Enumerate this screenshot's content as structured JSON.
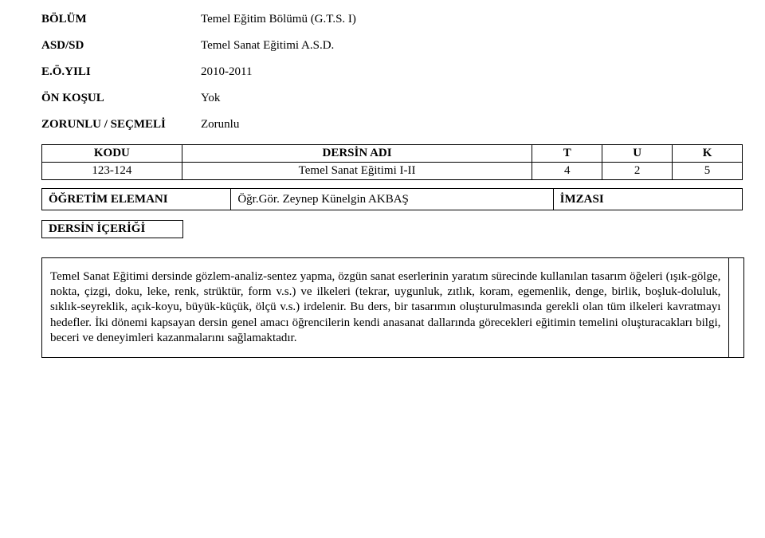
{
  "header": {
    "labels": {
      "bolum": "BÖLÜM",
      "asd": "ASD/SD",
      "eoyili": "E.Ö.YILI",
      "onkosul": "ÖN KOŞUL",
      "zorunlu": "ZORUNLU / SEÇMELİ"
    },
    "values": {
      "bolum": "Temel Eğitim Bölümü  (G.T.S. I)",
      "asd": "Temel Sanat Eğitimi A.S.D.",
      "eoyili": "2010-2011",
      "onkosul": "Yok",
      "zorunlu": "Zorunlu"
    }
  },
  "table1": {
    "head": {
      "kodu": "KODU",
      "dersin": "DERSİN ADI",
      "t": "T",
      "u": "U",
      "k": "K"
    },
    "row": {
      "kodu": "123-124",
      "dersin": "Temel Sanat Eğitimi I-II",
      "t": "4",
      "u": "2",
      "k": "5"
    }
  },
  "table2": {
    "left": "ÖĞRETİM  ELEMANI",
    "mid": "Öğr.Gör. Zeynep Künelgin AKBAŞ",
    "right": "İMZASI"
  },
  "section": {
    "label": "DERSİN İÇERİĞİ",
    "body": "Temel Sanat Eğitimi dersinde gözlem-analiz-sentez yapma, özgün sanat eserlerinin yaratım sürecinde kullanılan tasarım öğeleri (ışık-gölge, nokta, çizgi, doku, leke, renk, strüktür, form v.s.) ve ilkeleri (tekrar, uygunluk, zıtlık, koram, egemenlik, denge, birlik, boşluk-doluluk, sıklık-seyreklik, açık-koyu, büyük-küçük, ölçü v.s.) irdelenir. Bu ders, bir tasarımın oluşturulmasında gerekli olan tüm ilkeleri kavratmayı hedefler. İki dönemi kapsayan dersin genel amacı öğrencilerin kendi anasanat dallarında görecekleri eğitimin temelini oluşturacakları bilgi, beceri ve deneyimleri kazanmalarını sağlamaktadır."
  }
}
